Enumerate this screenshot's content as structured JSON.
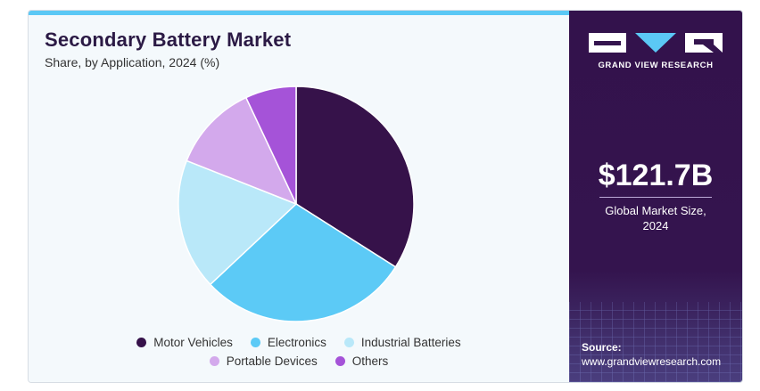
{
  "chart_data": {
    "type": "pie",
    "title": "Secondary Battery Market",
    "subtitle": "Share, by Application, 2024 (%)",
    "categories": [
      "Motor Vehicles",
      "Electronics",
      "Industrial Batteries",
      "Portable Devices",
      "Others"
    ],
    "values": [
      34,
      29,
      18,
      12,
      7
    ],
    "colors": [
      "#36124a",
      "#5ccaf6",
      "#b9e8f9",
      "#d3a9ec",
      "#a553d8"
    ],
    "legend_position": "bottom"
  },
  "sidebar": {
    "brand": "GRAND VIEW RESEARCH",
    "market_size": "$121.7B",
    "market_label_line1": "Global Market Size,",
    "market_label_line2": "2024",
    "source_label": "Source:",
    "source_url": "www.grandviewresearch.com"
  }
}
